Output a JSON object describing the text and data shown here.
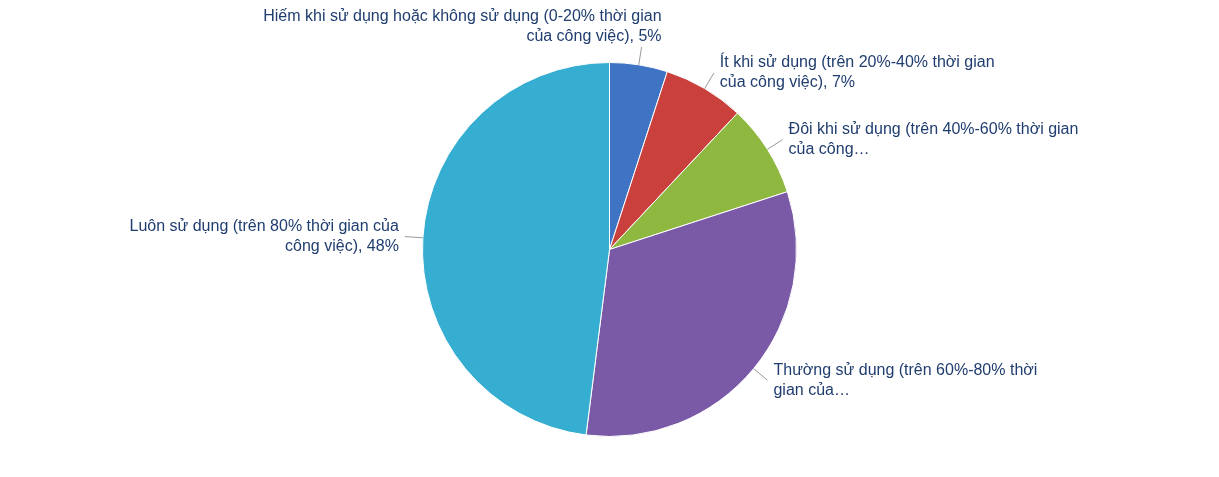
{
  "chart_data": {
    "type": "pie",
    "categories": [
      "Hiếm khi sử dụng hoặc không sử dụng (0-20% thời gian của công việc)",
      "Ít khi sử dụng (trên 20%-40% thời gian của công việc)",
      "Đôi khi sử dụng (trên 40%-60% thời gian của công…",
      "Thường sử dụng (trên 60%-80% thời gian của…",
      "Luôn sử dụng (trên 80% thời gian của công việc)"
    ],
    "values": [
      5,
      7,
      8,
      32,
      48
    ],
    "colors": [
      "#3f74c4",
      "#c9403c",
      "#8fb840",
      "#7a5aa6",
      "#36aed2"
    ],
    "value_labels": [
      "5%",
      "7%",
      null,
      null,
      "48%"
    ],
    "legend": false
  }
}
